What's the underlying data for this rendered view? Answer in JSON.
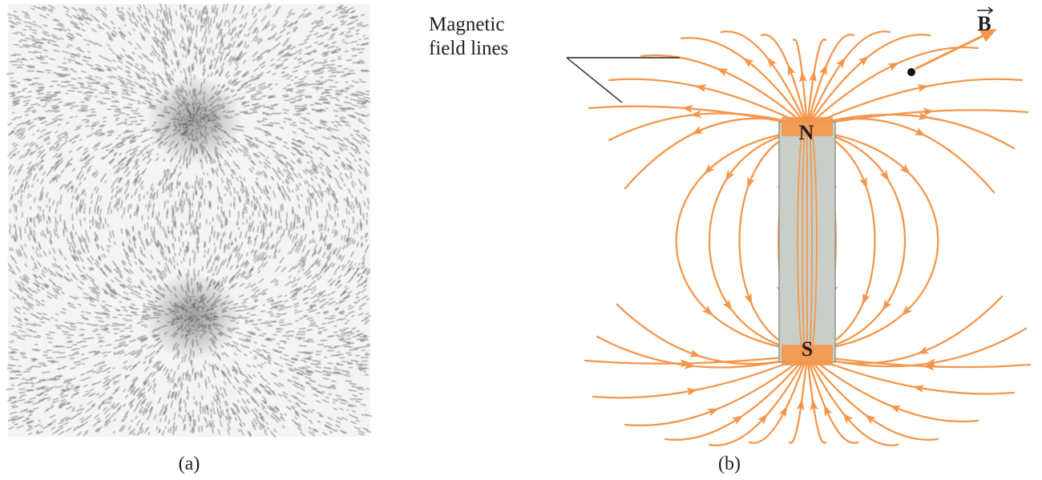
{
  "panel_a": {
    "label": "(a)"
  },
  "panel_b": {
    "label": "(b)",
    "callout_line1": "Magnetic",
    "callout_line2": "field lines",
    "north_label": "N",
    "south_label": "S",
    "vector_label": "B"
  },
  "colors": {
    "field_line": "#f5964a",
    "magnet_fill": "#c9cfc8",
    "magnet_border": "#8e978c",
    "filings": "#3a3a3a",
    "text": "#222222"
  }
}
